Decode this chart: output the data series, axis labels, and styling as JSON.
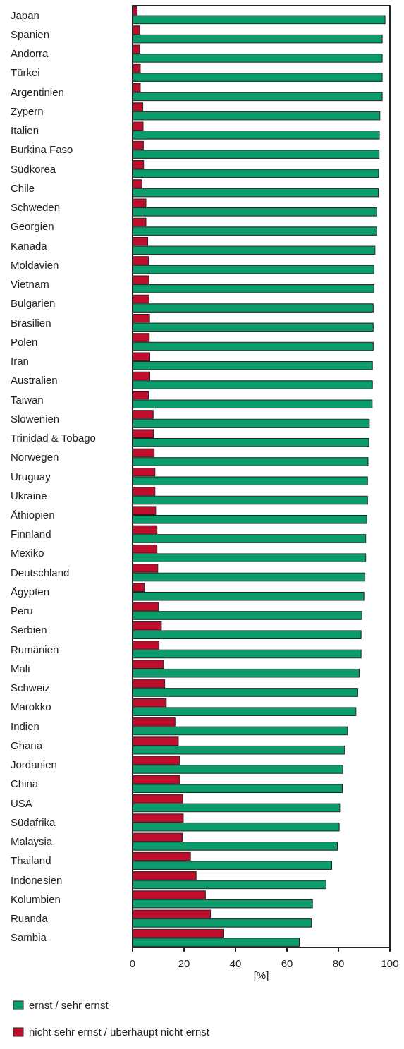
{
  "chart_data": {
    "type": "bar",
    "orientation": "horizontal",
    "xlabel": "[%]",
    "categories": [
      "Japan",
      "Spanien",
      "Andorra",
      "Türkei",
      "Argentinien",
      "Zypern",
      "Italien",
      "Burkina Faso",
      "Südkorea",
      "Chile",
      "Schweden",
      "Georgien",
      "Kanada",
      "Moldavien",
      "Vietnam",
      "Bulgarien",
      "Brasilien",
      "Polen",
      "Iran",
      "Australien",
      "Taiwan",
      "Slowenien",
      "Trinidad & Tobago",
      "Norwegen",
      "Uruguay",
      "Ukraine",
      "Äthiopien",
      "Finnland",
      "Mexiko",
      "Deutschland",
      "Ägypten",
      "Peru",
      "Serbien",
      "Rumänien",
      "Mali",
      "Schweiz",
      "Marokko",
      "Indien",
      "Ghana",
      "Jordanien",
      "China",
      "USA",
      "Südafrika",
      "Malaysia",
      "Thailand",
      "Indonesien",
      "Kolumbien",
      "Ruanda",
      "Sambia"
    ],
    "series": [
      {
        "name": "ernst / sehr ernst",
        "color": "#0a9c6b",
        "values": [
          98.1,
          97.0,
          97.0,
          97.0,
          97.0,
          96.1,
          95.9,
          95.8,
          95.6,
          95.5,
          94.9,
          94.9,
          94.2,
          93.8,
          93.8,
          93.5,
          93.5,
          93.5,
          93.2,
          93.2,
          93.1,
          92.0,
          91.8,
          91.5,
          91.3,
          91.3,
          91.0,
          90.6,
          90.6,
          90.3,
          89.9,
          89.1,
          88.8,
          88.8,
          88.1,
          87.5,
          86.8,
          83.5,
          82.4,
          81.7,
          81.5,
          80.5,
          80.3,
          79.6,
          77.4,
          75.2,
          69.9,
          69.5,
          64.8
        ]
      },
      {
        "name": "nicht sehr ernst / überhaupt nicht ernst",
        "color": "#c00d2b",
        "values": [
          1.8,
          2.8,
          2.8,
          3.0,
          3.0,
          4.0,
          4.1,
          4.2,
          4.3,
          3.7,
          5.2,
          5.2,
          5.9,
          6.2,
          6.4,
          6.4,
          6.6,
          6.5,
          6.7,
          6.7,
          6.2,
          8.0,
          8.1,
          8.4,
          8.7,
          8.7,
          9.0,
          9.5,
          9.5,
          9.8,
          4.6,
          10.1,
          11.2,
          10.3,
          12.0,
          12.5,
          13.1,
          16.5,
          17.8,
          18.3,
          18.4,
          19.5,
          19.7,
          19.3,
          22.5,
          24.7,
          28.3,
          30.3,
          35.2
        ]
      }
    ],
    "xlim": [
      0,
      100
    ],
    "xticks": [
      0,
      20,
      40,
      60,
      80,
      100
    ],
    "legend": "bottom left"
  }
}
